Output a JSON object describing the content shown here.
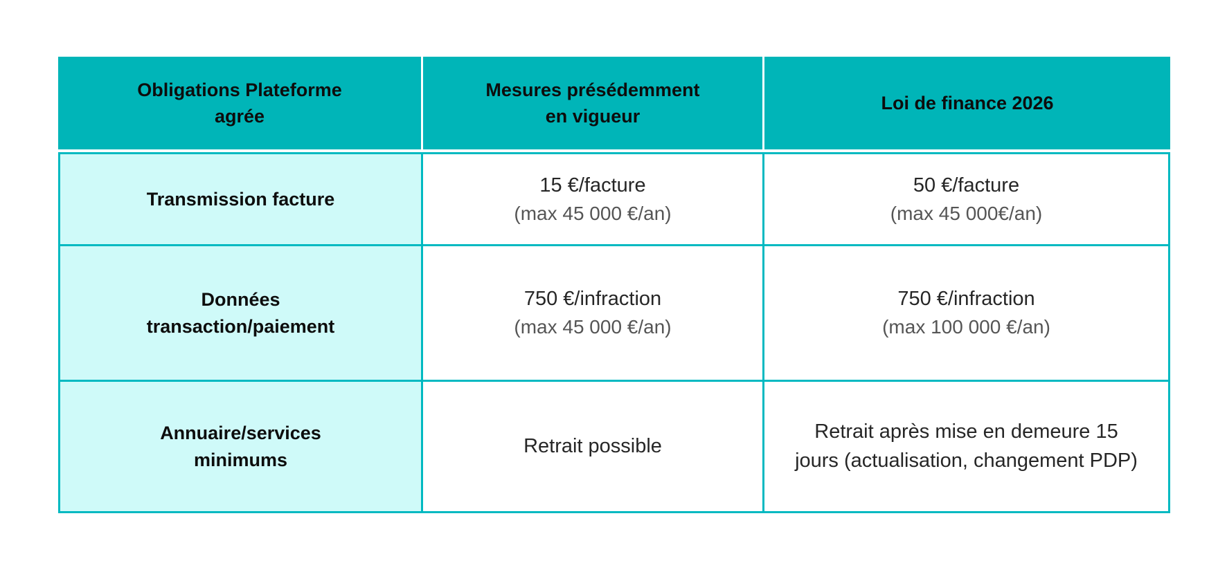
{
  "table": {
    "header": {
      "col_obligations": "Obligations Plateforme\nagrée",
      "col_previous": "Mesures présédemment\nen vigueur",
      "col_law2026": "Loi de finance 2026"
    },
    "rows": [
      {
        "label": "Transmission facture",
        "previous": {
          "main": "15 €/facture",
          "note": "(max 45 000 €/an)"
        },
        "law2026": {
          "main": "50 €/facture",
          "note": "(max 45 000€/an)"
        }
      },
      {
        "label": "Données\ntransaction/paiement",
        "previous": {
          "main": "750 €/infraction",
          "note": "(max 45 000 €/an)"
        },
        "law2026": {
          "main": "750 €/infraction",
          "note": "(max 100 000 €/an)"
        }
      },
      {
        "label": "Annuaire/services\nminimums",
        "previous": {
          "main": "Retrait possible"
        },
        "law2026": {
          "main": "Retrait après mise en demeure 15\njours (actualisation, changement PDP)"
        }
      }
    ],
    "colors": {
      "header_bg": "#00b5b8",
      "label_column_bg": "#cffaf9",
      "grid_border": "#00b9c1",
      "text_dark": "#262626",
      "text_note_gray": "#555555"
    }
  }
}
